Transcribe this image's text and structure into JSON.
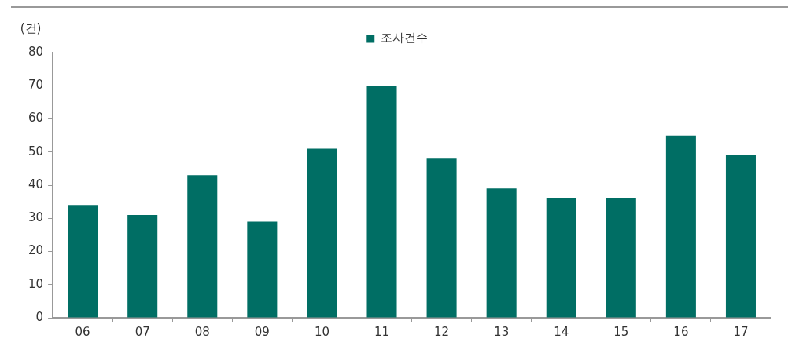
{
  "chart_data": {
    "type": "bar",
    "ylabel": "(건)",
    "categories": [
      "06",
      "07",
      "08",
      "09",
      "10",
      "11",
      "12",
      "13",
      "14",
      "15",
      "16",
      "17"
    ],
    "series": [
      {
        "name": "조사건수",
        "color": "#006e64",
        "values": [
          34,
          31,
          43,
          29,
          51,
          70,
          48,
          39,
          36,
          36,
          55,
          49
        ]
      }
    ],
    "ylim": [
      0,
      80
    ],
    "yticks": [
      0,
      10,
      20,
      30,
      40,
      50,
      60,
      70,
      80
    ],
    "legend": "top"
  }
}
